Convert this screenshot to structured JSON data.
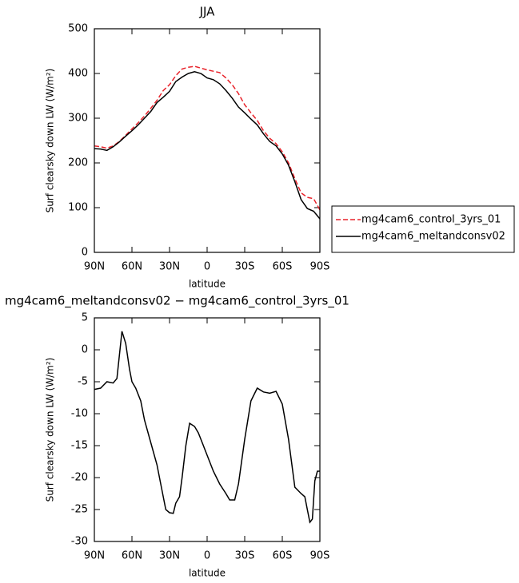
{
  "chart_data": [
    {
      "type": "line",
      "title": "JJA",
      "xlabel": "latitude",
      "ylabel": "Surf clearsky down LW (W/m²)",
      "x": [
        90,
        85,
        80,
        75,
        70,
        65,
        60,
        55,
        50,
        45,
        40,
        35,
        30,
        25,
        20,
        15,
        10,
        5,
        0,
        -5,
        -10,
        -15,
        -20,
        -25,
        -30,
        -35,
        -40,
        -45,
        -50,
        -55,
        -60,
        -65,
        -70,
        -75,
        -80,
        -85,
        -90
      ],
      "series": [
        {
          "name": "mg4cam6_control_3yrs_01",
          "color": "#e8222a",
          "dash": true,
          "values": [
            238,
            236,
            233,
            238,
            248,
            262,
            276,
            290,
            305,
            322,
            340,
            362,
            375,
            395,
            410,
            414,
            416,
            412,
            408,
            405,
            402,
            390,
            375,
            355,
            330,
            312,
            295,
            272,
            255,
            243,
            225,
            200,
            165,
            133,
            123,
            120,
            95
          ]
        },
        {
          "name": "mg4cam6_meltandconsv02",
          "color": "#000000",
          "dash": false,
          "values": [
            232,
            231,
            228,
            236,
            247,
            260,
            272,
            285,
            300,
            315,
            335,
            347,
            360,
            382,
            392,
            400,
            404,
            400,
            390,
            386,
            377,
            362,
            345,
            325,
            312,
            298,
            285,
            265,
            248,
            238,
            220,
            195,
            158,
            118,
            98,
            92,
            75
          ]
        }
      ],
      "xlim": [
        90,
        -90
      ],
      "xticks": [
        {
          "value": 90,
          "label": "90N"
        },
        {
          "value": 60,
          "label": "60N"
        },
        {
          "value": 30,
          "label": "30N"
        },
        0,
        {
          "value": -30,
          "label": "30S"
        },
        {
          "value": -60,
          "label": "60S"
        },
        {
          "value": -90,
          "label": "90S"
        }
      ],
      "ylim": [
        0,
        500
      ],
      "yticks": [
        0,
        100,
        200,
        300,
        400,
        500
      ],
      "legend": "right"
    },
    {
      "type": "line",
      "title": "mg4cam6_meltandconsv02 − mg4cam6_control_3yrs_01",
      "xlabel": "latitude",
      "ylabel": "Surf clearsky down LW (W/m²)",
      "x": [
        90,
        85,
        80,
        75,
        72,
        68,
        65,
        62,
        60,
        57,
        53,
        50,
        45,
        40,
        37,
        33,
        30,
        27,
        25,
        22,
        20,
        17,
        14,
        10,
        7,
        5,
        0,
        -5,
        -10,
        -15,
        -18,
        -22,
        -25,
        -30,
        -35,
        -40,
        -45,
        -50,
        -55,
        -60,
        -65,
        -70,
        -75,
        -78,
        -80,
        -82,
        -84,
        -86,
        -88,
        -90
      ],
      "series": [
        {
          "color": "#000000",
          "dash": false,
          "values": [
            -6.2,
            -6,
            -5,
            -5.2,
            -4.5,
            2.9,
            1,
            -3,
            -5,
            -6,
            -8,
            -11,
            -14.5,
            -18,
            -21,
            -25,
            -25.5,
            -25.6,
            -24,
            -23,
            -20,
            -15,
            -11.5,
            -12,
            -13,
            -14,
            -16.5,
            -19,
            -21,
            -22.5,
            -23.5,
            -23.5,
            -21,
            -14,
            -8,
            -6,
            -6.6,
            -6.8,
            -6.5,
            -8.5,
            -14,
            -21.5,
            -22.5,
            -23,
            -25,
            -27,
            -26.5,
            -20.5,
            -19,
            -19
          ]
        }
      ],
      "xlim": [
        90,
        -90
      ],
      "xticks": [
        {
          "value": 90,
          "label": "90N"
        },
        {
          "value": 60,
          "label": "60N"
        },
        {
          "value": 30,
          "label": "30N"
        },
        0,
        {
          "value": -30,
          "label": "30S"
        },
        {
          "value": -60,
          "label": "60S"
        },
        {
          "value": -90,
          "label": "90S"
        }
      ],
      "ylim": [
        -30,
        5
      ],
      "yticks": [
        -30,
        -25,
        -20,
        -15,
        -10,
        -5,
        0,
        5
      ]
    }
  ]
}
